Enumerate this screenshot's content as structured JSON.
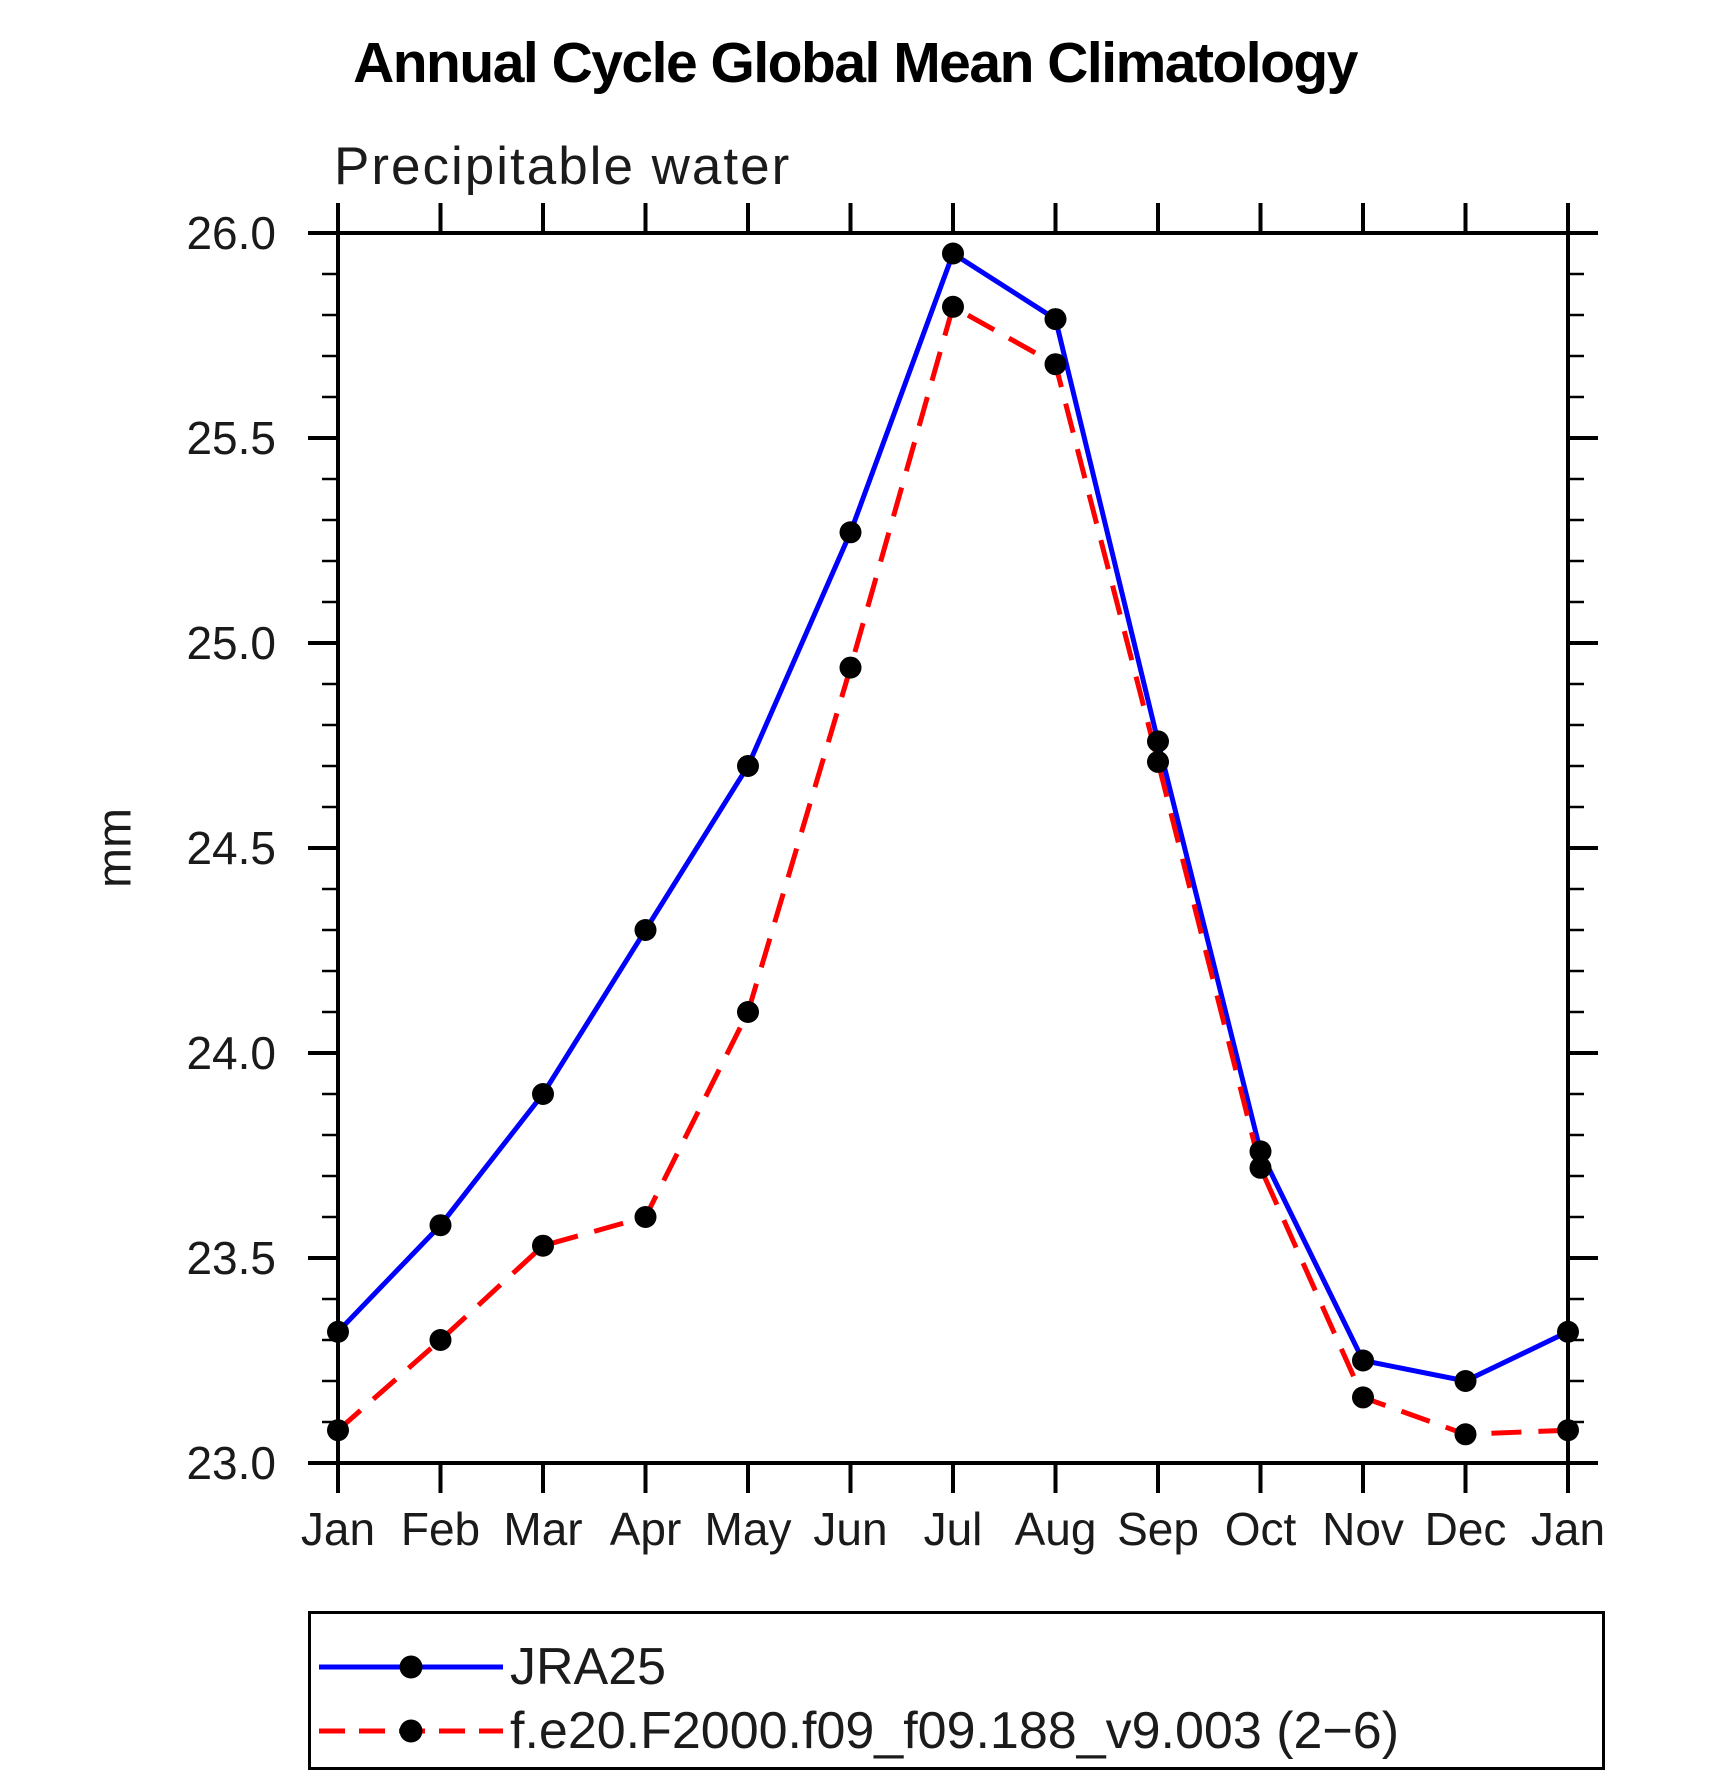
{
  "chart_data": {
    "type": "line",
    "title": "Annual Cycle Global Mean Climatology",
    "subtitle": "Precipitable water",
    "ylabel": "mm",
    "xlabel": "",
    "categories": [
      "Jan",
      "Feb",
      "Mar",
      "Apr",
      "May",
      "Jun",
      "Jul",
      "Aug",
      "Sep",
      "Oct",
      "Nov",
      "Dec",
      "Jan"
    ],
    "series": [
      {
        "name": "JRA25",
        "color": "#0000ff",
        "line_style": "solid",
        "marker": "filled-circle",
        "marker_color": "#000000",
        "values": [
          23.32,
          23.58,
          23.9,
          24.3,
          24.7,
          25.27,
          25.95,
          25.79,
          24.76,
          23.76,
          23.25,
          23.2,
          23.32
        ]
      },
      {
        "name": "f.e20.F2000.f09_f09.188_v9.003 (2−6)",
        "color": "#ff0000",
        "line_style": "dashed",
        "marker": "filled-circle",
        "marker_color": "#000000",
        "values": [
          23.08,
          23.3,
          23.53,
          23.6,
          24.1,
          24.94,
          25.82,
          25.68,
          24.71,
          23.72,
          23.16,
          23.07,
          23.08
        ]
      }
    ],
    "ylim": [
      23.0,
      26.0
    ],
    "ytick_major": 0.5,
    "ytick_minor": 0.1,
    "yticklabels": [
      "23.0",
      "23.5",
      "24.0",
      "24.5",
      "25.0",
      "25.5",
      "26.0"
    ],
    "grid": false,
    "legend_position": "bottom",
    "axis_color": "#000000"
  }
}
